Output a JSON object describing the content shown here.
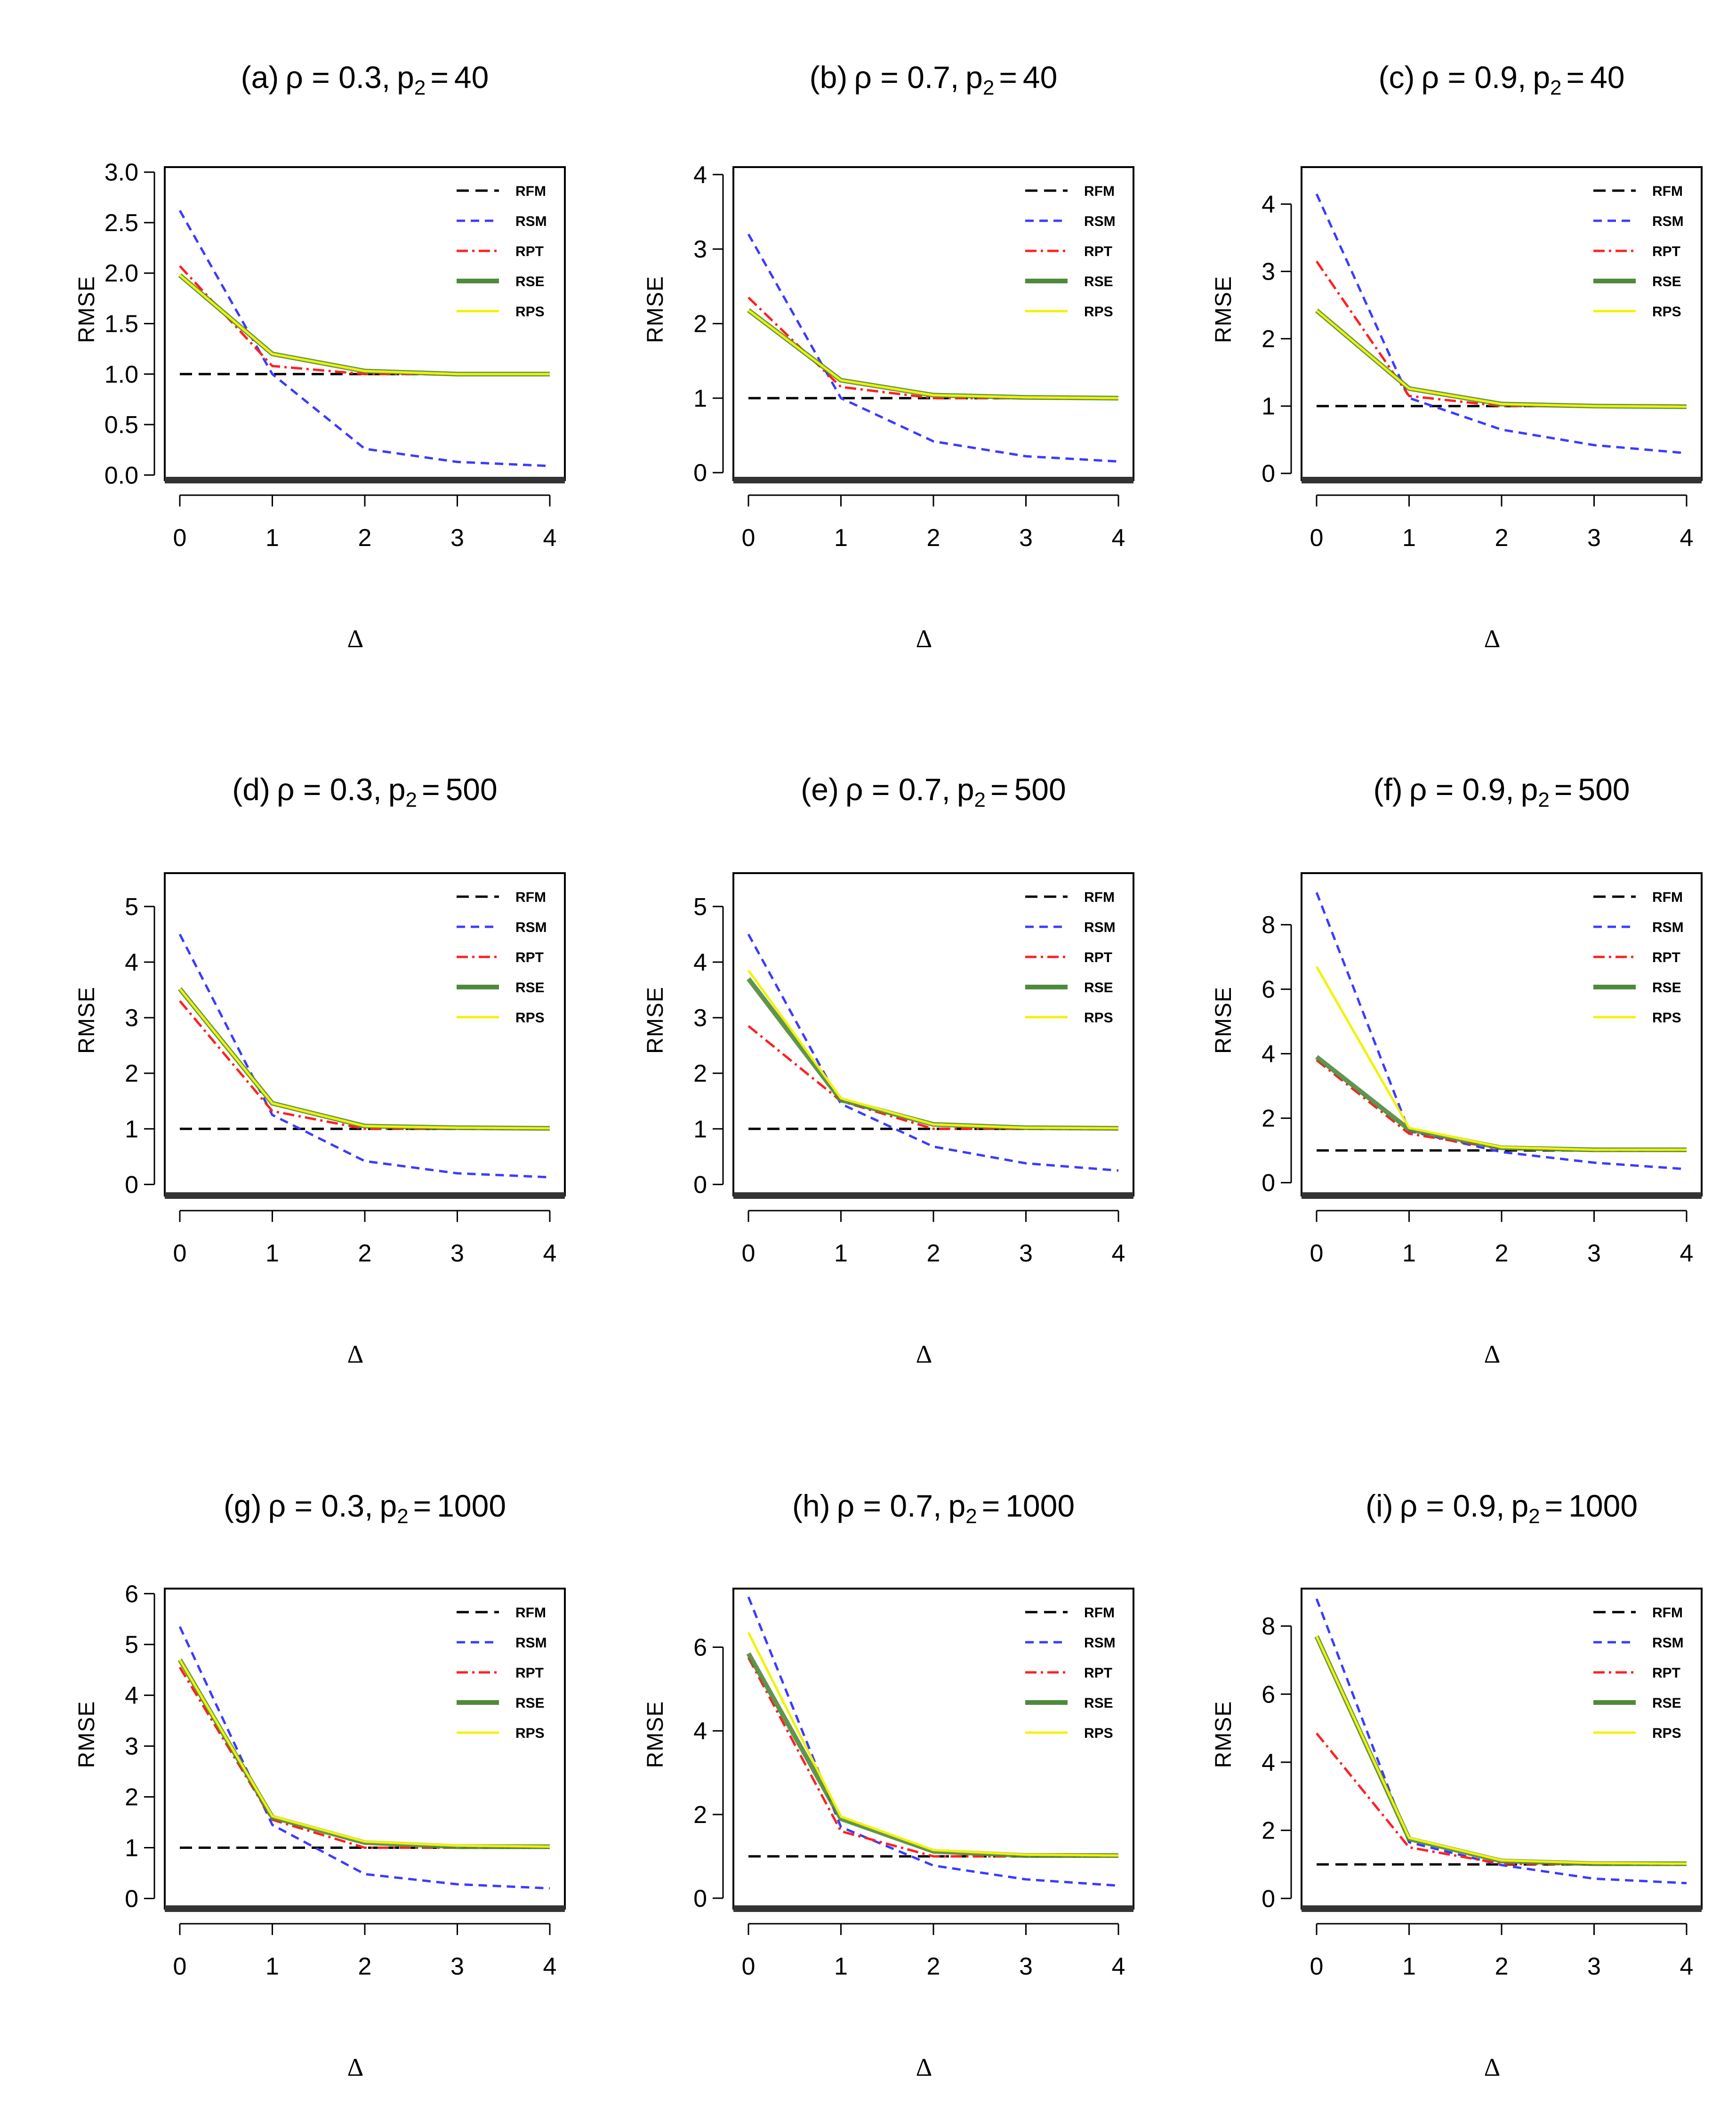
{
  "figure": {
    "y_axis_label": "RMSE",
    "x_axis_label": "Δ",
    "legend_labels": [
      "RFM",
      "RSM",
      "RPT",
      "RSE",
      "RPS"
    ],
    "series_colors": {
      "RFM": "#000000",
      "RSM": "#3b3bff",
      "RPT": "#ff2020",
      "RSE": "#4f8a3c",
      "RPS": "#f2f200"
    }
  },
  "chart_data": [
    {
      "type": "line",
      "panel": "(a)",
      "rho_label": "ρ = 0.3,",
      "p2_value": "40",
      "x": [
        0,
        1,
        2,
        3,
        4
      ],
      "xticks": [
        "0",
        "1",
        "2",
        "3",
        "4"
      ],
      "ylim": [
        -0.05,
        3.05
      ],
      "yticks": [
        0.0,
        0.5,
        1.0,
        1.5,
        2.0,
        2.5,
        3.0
      ],
      "ytick_labels": [
        "0.0",
        "0.5",
        "1.0",
        "1.5",
        "2.0",
        "2.5",
        "3.0"
      ],
      "series": [
        {
          "name": "RFM",
          "values": [
            1.0,
            1.0,
            1.0,
            1.0,
            1.0
          ]
        },
        {
          "name": "RSM",
          "values": [
            2.62,
            1.0,
            0.26,
            0.13,
            0.09
          ]
        },
        {
          "name": "RPT",
          "values": [
            2.07,
            1.08,
            1.0,
            1.0,
            1.0
          ]
        },
        {
          "name": "RSE",
          "values": [
            1.98,
            1.2,
            1.03,
            1.0,
            1.0
          ]
        },
        {
          "name": "RPS",
          "values": [
            1.98,
            1.2,
            1.03,
            1.0,
            1.0
          ]
        }
      ]
    },
    {
      "type": "line",
      "panel": "(b)",
      "rho_label": "ρ = 0.7,",
      "p2_value": "40",
      "x": [
        0,
        1,
        2,
        3,
        4
      ],
      "xticks": [
        "0",
        "1",
        "2",
        "3",
        "4"
      ],
      "ylim": [
        -0.1,
        4.1
      ],
      "yticks": [
        0,
        1,
        2,
        3,
        4
      ],
      "ytick_labels": [
        "0",
        "1",
        "2",
        "3",
        "4"
      ],
      "series": [
        {
          "name": "RFM",
          "values": [
            1.0,
            1.0,
            1.0,
            1.0,
            1.0
          ]
        },
        {
          "name": "RSM",
          "values": [
            3.2,
            1.0,
            0.42,
            0.22,
            0.15
          ]
        },
        {
          "name": "RPT",
          "values": [
            2.35,
            1.15,
            1.0,
            1.0,
            1.0
          ]
        },
        {
          "name": "RSE",
          "values": [
            2.18,
            1.24,
            1.04,
            1.01,
            1.0
          ]
        },
        {
          "name": "RPS",
          "values": [
            2.18,
            1.24,
            1.04,
            1.01,
            1.0
          ]
        }
      ]
    },
    {
      "type": "line",
      "panel": "(c)",
      "rho_label": "ρ = 0.9,",
      "p2_value": "40",
      "x": [
        0,
        1,
        2,
        3,
        4
      ],
      "xticks": [
        "0",
        "1",
        "2",
        "3",
        "4"
      ],
      "ylim": [
        -0.1,
        4.55
      ],
      "yticks": [
        0,
        1,
        2,
        3,
        4
      ],
      "ytick_labels": [
        "0",
        "1",
        "2",
        "3",
        "4"
      ],
      "series": [
        {
          "name": "RFM",
          "values": [
            1.0,
            1.0,
            1.0,
            1.0,
            1.0
          ]
        },
        {
          "name": "RSM",
          "values": [
            4.15,
            1.12,
            0.65,
            0.42,
            0.3
          ]
        },
        {
          "name": "RPT",
          "values": [
            3.15,
            1.15,
            1.0,
            1.0,
            1.0
          ]
        },
        {
          "name": "RSE",
          "values": [
            2.42,
            1.26,
            1.03,
            1.0,
            0.99
          ]
        },
        {
          "name": "RPS",
          "values": [
            2.42,
            1.26,
            1.03,
            1.0,
            0.99
          ]
        }
      ]
    },
    {
      "type": "line",
      "panel": "(d)",
      "rho_label": "ρ = 0.3,",
      "p2_value": "500",
      "x": [
        0,
        1,
        2,
        3,
        4
      ],
      "xticks": [
        "0",
        "1",
        "2",
        "3",
        "4"
      ],
      "ylim": [
        -0.2,
        5.6
      ],
      "yticks": [
        0,
        1,
        2,
        3,
        4,
        5
      ],
      "ytick_labels": [
        "0",
        "1",
        "2",
        "3",
        "4",
        "5"
      ],
      "series": [
        {
          "name": "RFM",
          "values": [
            1.0,
            1.0,
            1.0,
            1.0,
            1.0
          ]
        },
        {
          "name": "RSM",
          "values": [
            4.5,
            1.25,
            0.42,
            0.2,
            0.13
          ]
        },
        {
          "name": "RPT",
          "values": [
            3.3,
            1.32,
            1.0,
            1.0,
            1.0
          ]
        },
        {
          "name": "RSE",
          "values": [
            3.52,
            1.46,
            1.05,
            1.02,
            1.01
          ]
        },
        {
          "name": "RPS",
          "values": [
            3.52,
            1.46,
            1.05,
            1.02,
            1.01
          ]
        }
      ]
    },
    {
      "type": "line",
      "panel": "(e)",
      "rho_label": "ρ = 0.7,",
      "p2_value": "500",
      "x": [
        0,
        1,
        2,
        3,
        4
      ],
      "xticks": [
        "0",
        "1",
        "2",
        "3",
        "4"
      ],
      "ylim": [
        -0.2,
        5.6
      ],
      "yticks": [
        0,
        1,
        2,
        3,
        4,
        5
      ],
      "ytick_labels": [
        "0",
        "1",
        "2",
        "3",
        "4",
        "5"
      ],
      "series": [
        {
          "name": "RFM",
          "values": [
            1.0,
            1.0,
            1.0,
            1.0,
            1.0
          ]
        },
        {
          "name": "RSM",
          "values": [
            4.5,
            1.45,
            0.68,
            0.38,
            0.25
          ]
        },
        {
          "name": "RPT",
          "values": [
            2.85,
            1.5,
            1.0,
            1.0,
            1.0
          ]
        },
        {
          "name": "RSE",
          "values": [
            3.7,
            1.52,
            1.08,
            1.02,
            1.01
          ]
        },
        {
          "name": "RPS",
          "values": [
            3.85,
            1.55,
            1.08,
            1.02,
            1.01
          ]
        }
      ]
    },
    {
      "type": "line",
      "panel": "(f)",
      "rho_label": "ρ = 0.9,",
      "p2_value": "500",
      "x": [
        0,
        1,
        2,
        3,
        4
      ],
      "xticks": [
        "0",
        "1",
        "2",
        "3",
        "4"
      ],
      "ylim": [
        -0.4,
        9.6
      ],
      "yticks": [
        0,
        2,
        4,
        6,
        8
      ],
      "ytick_labels": [
        "0",
        "2",
        "4",
        "6",
        "8"
      ],
      "series": [
        {
          "name": "RFM",
          "values": [
            1.0,
            1.0,
            1.0,
            1.0,
            1.0
          ]
        },
        {
          "name": "RSM",
          "values": [
            9.0,
            1.6,
            0.95,
            0.62,
            0.42
          ]
        },
        {
          "name": "RPT",
          "values": [
            3.8,
            1.52,
            1.05,
            1.0,
            1.0
          ]
        },
        {
          "name": "RSE",
          "values": [
            3.9,
            1.65,
            1.08,
            1.02,
            1.02
          ]
        },
        {
          "name": "RPS",
          "values": [
            6.7,
            1.7,
            1.1,
            1.02,
            1.02
          ]
        }
      ]
    },
    {
      "type": "line",
      "panel": "(g)",
      "rho_label": "ρ = 0.3,",
      "p2_value": "1000",
      "x": [
        0,
        1,
        2,
        3,
        4
      ],
      "xticks": [
        "0",
        "1",
        "2",
        "3",
        "4"
      ],
      "ylim": [
        -0.2,
        6.1
      ],
      "yticks": [
        0,
        1,
        2,
        3,
        4,
        5,
        6
      ],
      "ytick_labels": [
        "0",
        "1",
        "2",
        "3",
        "4",
        "5",
        "6"
      ],
      "series": [
        {
          "name": "RFM",
          "values": [
            1.0,
            1.0,
            1.0,
            1.0,
            1.0
          ]
        },
        {
          "name": "RSM",
          "values": [
            5.35,
            1.45,
            0.48,
            0.28,
            0.2
          ]
        },
        {
          "name": "RPT",
          "values": [
            4.55,
            1.55,
            1.0,
            1.0,
            1.0
          ]
        },
        {
          "name": "RSE",
          "values": [
            4.7,
            1.6,
            1.1,
            1.02,
            1.02
          ]
        },
        {
          "name": "RPS",
          "values": [
            4.7,
            1.62,
            1.12,
            1.04,
            1.02
          ]
        }
      ]
    },
    {
      "type": "line",
      "panel": "(h)",
      "rho_label": "ρ = 0.7,",
      "p2_value": "1000",
      "x": [
        0,
        1,
        2,
        3,
        4
      ],
      "xticks": [
        "0",
        "1",
        "2",
        "3",
        "4"
      ],
      "ylim": [
        -0.25,
        7.4
      ],
      "yticks": [
        0,
        2,
        4,
        6
      ],
      "ytick_labels": [
        "0",
        "2",
        "4",
        "6"
      ],
      "series": [
        {
          "name": "RFM",
          "values": [
            1.0,
            1.0,
            1.0,
            1.0,
            1.0
          ]
        },
        {
          "name": "RSM",
          "values": [
            7.2,
            1.7,
            0.78,
            0.45,
            0.3
          ]
        },
        {
          "name": "RPT",
          "values": [
            5.75,
            1.6,
            1.0,
            1.0,
            1.0
          ]
        },
        {
          "name": "RSE",
          "values": [
            5.85,
            1.9,
            1.12,
            1.02,
            1.02
          ]
        },
        {
          "name": "RPS",
          "values": [
            6.35,
            1.95,
            1.15,
            1.04,
            1.02
          ]
        }
      ]
    },
    {
      "type": "line",
      "panel": "(i)",
      "rho_label": "ρ = 0.9,",
      "p2_value": "1000",
      "x": [
        0,
        1,
        2,
        3,
        4
      ],
      "xticks": [
        "0",
        "1",
        "2",
        "3",
        "4"
      ],
      "ylim": [
        -0.3,
        9.1
      ],
      "yticks": [
        0,
        2,
        4,
        6,
        8
      ],
      "ytick_labels": [
        "0",
        "2",
        "4",
        "6",
        "8"
      ],
      "series": [
        {
          "name": "RFM",
          "values": [
            1.0,
            1.0,
            1.0,
            1.0,
            1.0
          ]
        },
        {
          "name": "RSM",
          "values": [
            8.8,
            1.65,
            0.98,
            0.58,
            0.45
          ]
        },
        {
          "name": "RPT",
          "values": [
            4.85,
            1.5,
            1.02,
            1.0,
            1.0
          ]
        },
        {
          "name": "RSE",
          "values": [
            7.7,
            1.75,
            1.1,
            1.02,
            1.02
          ]
        },
        {
          "name": "RPS",
          "values": [
            7.7,
            1.78,
            1.12,
            1.04,
            1.02
          ]
        }
      ]
    }
  ]
}
